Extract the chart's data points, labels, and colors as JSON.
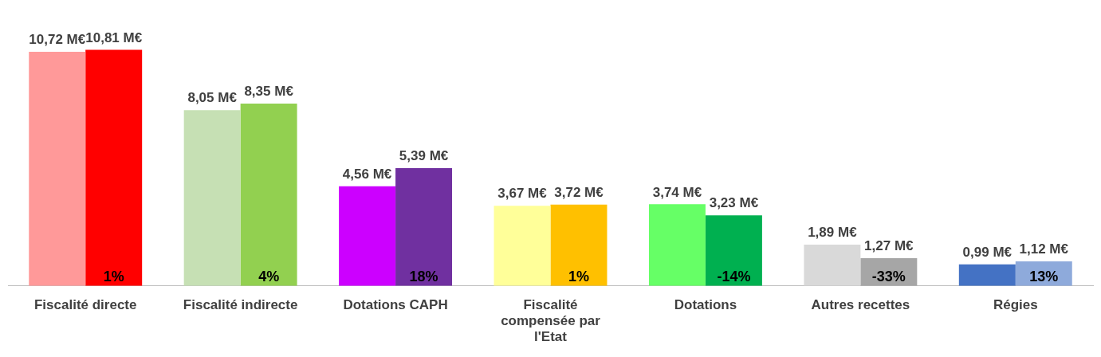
{
  "chart_data": {
    "type": "bar",
    "categories": [
      "Fiscalité directe",
      "Fiscalité indirecte",
      "Dotations CAPH",
      "Fiscalité compensée par l'Etat",
      "Dotations",
      "Autres recettes",
      "Régies"
    ],
    "series": [
      {
        "colors": [
          "#ff9999",
          "#c6e0b4",
          "#cc00ff",
          "#ffff99",
          "#66ff66",
          "#d9d9d9",
          "#4472c4"
        ],
        "values": [
          10.72,
          8.05,
          4.56,
          3.67,
          3.74,
          1.89,
          0.99
        ],
        "value_labels": [
          "10,72 M€",
          "8,05 M€",
          "4,56 M€",
          "3,67 M€",
          "3,74 M€",
          "1,89 M€",
          "0,99 M€"
        ]
      },
      {
        "colors": [
          "#ff0000",
          "#92d050",
          "#7030a0",
          "#ffc000",
          "#00b050",
          "#a6a6a6",
          "#8eaadb"
        ],
        "values": [
          10.81,
          8.35,
          5.39,
          3.72,
          3.23,
          1.27,
          1.12
        ],
        "value_labels": [
          "10,81 M€",
          "8,35 M€",
          "5,39 M€",
          "3,72 M€",
          "3,23 M€",
          "1,27 M€",
          "1,12 M€"
        ]
      }
    ],
    "annotations": [
      {
        "text": "1%",
        "x": "Fiscalité directe"
      },
      {
        "text": "4%",
        "x": "Fiscalité indirecte"
      },
      {
        "text": "18%",
        "x": "Dotations CAPH"
      },
      {
        "text": "1%",
        "x": "Fiscalité compensée par l'Etat"
      },
      {
        "text": "-14%",
        "x": "Dotations"
      },
      {
        "text": "-33%",
        "x": "Autres recettes"
      },
      {
        "text": "13%",
        "x": "Régies"
      }
    ],
    "grid": false,
    "legend": false
  }
}
